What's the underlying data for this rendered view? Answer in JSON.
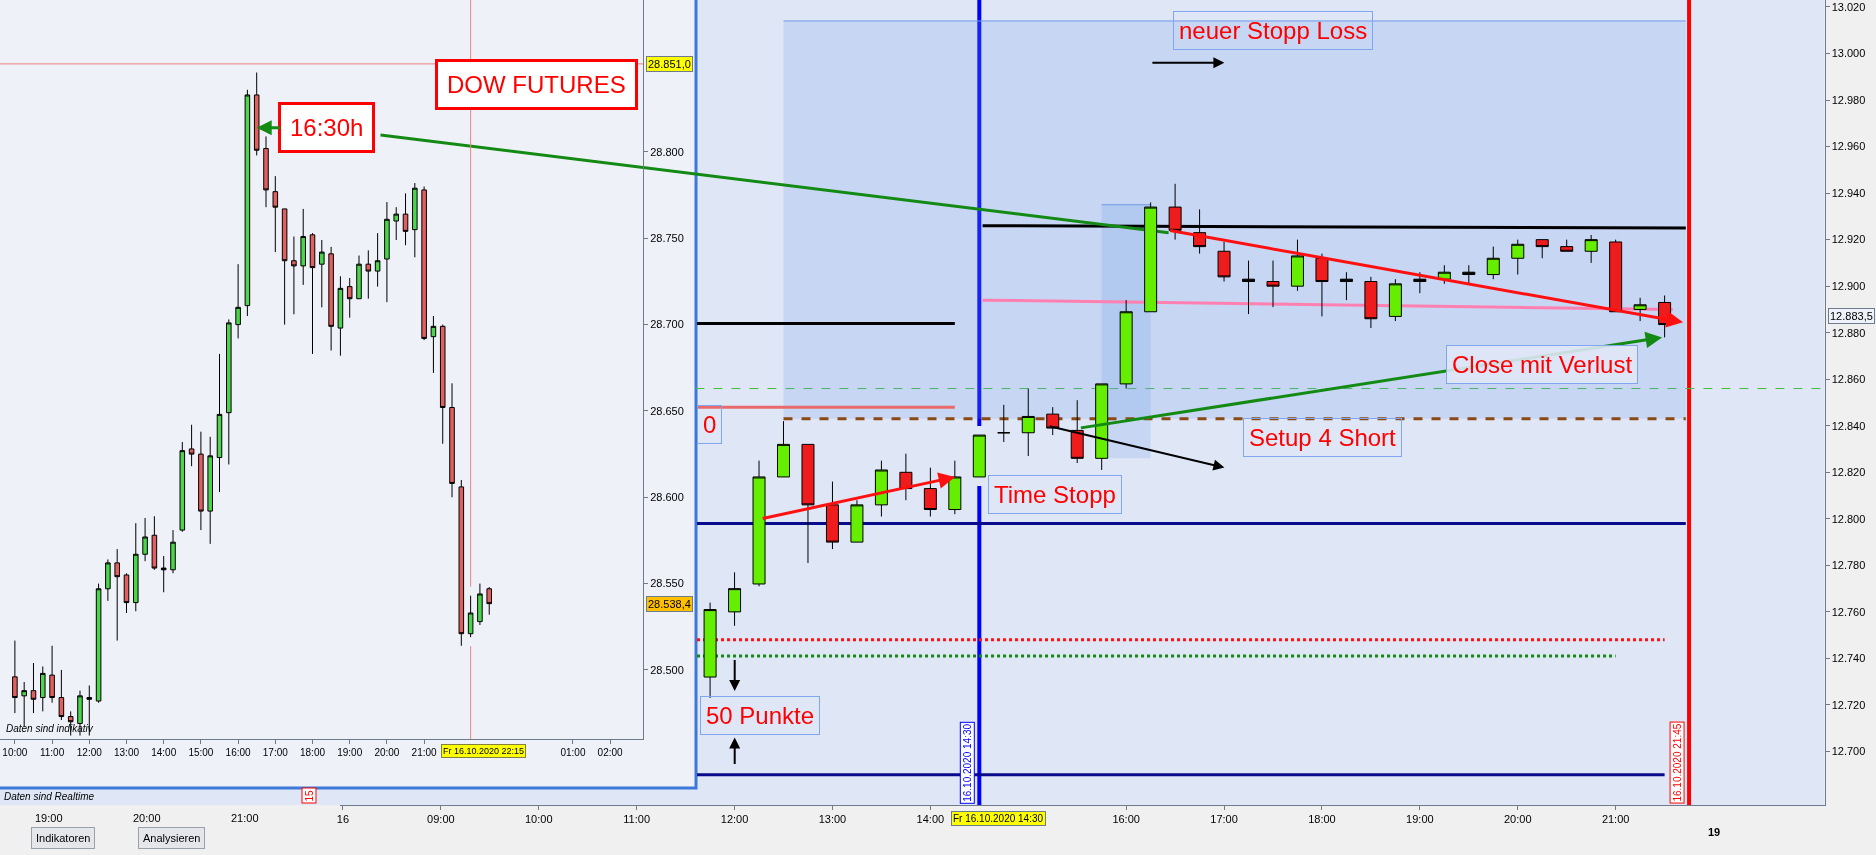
{
  "chart_data": [
    {
      "type": "candlestick",
      "title": "DOW FUTURES",
      "x": [
        "2020-10-16T10:00",
        "2020-10-16T10:15",
        "2020-10-16T10:30",
        "2020-10-16T10:45",
        "2020-10-16T11:00",
        "2020-10-16T11:15",
        "2020-10-16T11:30",
        "2020-10-16T11:45",
        "2020-10-16T12:00",
        "2020-10-16T12:15",
        "2020-10-16T12:30",
        "2020-10-16T12:45",
        "2020-10-16T13:00",
        "2020-10-16T13:15",
        "2020-10-16T13:30",
        "2020-10-16T13:45",
        "2020-10-16T14:00",
        "2020-10-16T14:15",
        "2020-10-16T14:30",
        "2020-10-16T14:45",
        "2020-10-16T15:00",
        "2020-10-16T15:15",
        "2020-10-16T15:30",
        "2020-10-16T15:45",
        "2020-10-16T16:00",
        "2020-10-16T16:15",
        "2020-10-16T16:30",
        "2020-10-16T16:45",
        "2020-10-16T17:00",
        "2020-10-16T17:15",
        "2020-10-16T17:30",
        "2020-10-16T17:45",
        "2020-10-16T18:00",
        "2020-10-16T18:15",
        "2020-10-16T18:30",
        "2020-10-16T18:45",
        "2020-10-16T19:00",
        "2020-10-16T19:15",
        "2020-10-16T19:30",
        "2020-10-16T19:45",
        "2020-10-16T20:00",
        "2020-10-16T20:15",
        "2020-10-16T20:30",
        "2020-10-16T20:45",
        "2020-10-16T21:00",
        "2020-10-16T21:15",
        "2020-10-16T21:30",
        "2020-10-16T21:45",
        "2020-10-16T22:00",
        "2020-10-16T22:15",
        "2020-10-16T22:30",
        "2020-10-16T22:45"
      ],
      "ohlc": [
        [
          28496,
          28517,
          28475,
          28484
        ],
        [
          28485,
          28493,
          28467,
          28488
        ],
        [
          28488,
          28504,
          28475,
          28483
        ],
        [
          28484,
          28502,
          28476,
          28498
        ],
        [
          28497,
          28514,
          28481,
          28484
        ],
        [
          28484,
          28500,
          28471,
          28473
        ],
        [
          28473,
          28476,
          28462,
          28470
        ],
        [
          28469,
          28488,
          28462,
          28485
        ],
        [
          28484,
          28491,
          28462,
          28483
        ],
        [
          28482,
          28550,
          28481,
          28547
        ],
        [
          28547,
          28564,
          28540,
          28562
        ],
        [
          28562,
          28570,
          28517,
          28554
        ],
        [
          28555,
          28556,
          28533,
          28539
        ],
        [
          28539,
          28585,
          28534,
          28567
        ],
        [
          28567,
          28588,
          28563,
          28577
        ],
        [
          28578,
          28589,
          28558,
          28559
        ],
        [
          28559,
          28566,
          28545,
          28558
        ],
        [
          28558,
          28581,
          28556,
          28574
        ],
        [
          28581,
          28632,
          28580,
          28627
        ],
        [
          28628,
          28642,
          28618,
          28625
        ],
        [
          28625,
          28638,
          28581,
          28592
        ],
        [
          28592,
          28635,
          28573,
          28624
        ],
        [
          28623,
          28683,
          28603,
          28648
        ],
        [
          28649,
          28703,
          28619,
          28701
        ],
        [
          28700,
          28735,
          28692,
          28710
        ],
        [
          28711,
          28836,
          28705,
          28833
        ],
        [
          28833,
          28846,
          28798,
          28801
        ],
        [
          28802,
          28809,
          28768,
          28778
        ],
        [
          28777,
          28786,
          28742,
          28768
        ],
        [
          28767,
          28767,
          28700,
          28737
        ],
        [
          28737,
          28751,
          28706,
          28734
        ],
        [
          28734,
          28767,
          28723,
          28751
        ],
        [
          28752,
          28753,
          28683,
          28733
        ],
        [
          28735,
          28749,
          28710,
          28742
        ],
        [
          28741,
          28745,
          28685,
          28699
        ],
        [
          28698,
          28728,
          28682,
          28721
        ],
        [
          28722,
          28727,
          28704,
          28715
        ],
        [
          28715,
          28740,
          28715,
          28735
        ],
        [
          28735,
          28743,
          28715,
          28731
        ],
        [
          28731,
          28753,
          28722,
          28737
        ],
        [
          28738,
          28771,
          28713,
          28761
        ],
        [
          28760,
          28768,
          28749,
          28764
        ],
        [
          28764,
          28776,
          28746,
          28754
        ],
        [
          28755,
          28782,
          28739,
          28779
        ],
        [
          28778,
          28780,
          28691,
          28692
        ],
        [
          28693,
          28705,
          28672,
          28699
        ],
        [
          28699,
          28700,
          28631,
          28652
        ],
        [
          28652,
          28666,
          28600,
          28608
        ],
        [
          28606,
          28610,
          28514,
          28521
        ],
        [
          28521,
          28543,
          28519,
          28533
        ],
        [
          28528,
          28550,
          28526,
          28544
        ],
        [
          28547,
          28548,
          28532,
          28538.4
        ]
      ],
      "colors": [
        "#e06060",
        "#4cd44c",
        "#e06060",
        "#4cd44c",
        "#e06060",
        "#e06060",
        "#e06060",
        "#4cd44c",
        "#000000",
        "#4cd44c",
        "#4cd44c",
        "#e06060",
        "#e06060",
        "#4cd44c",
        "#4cd44c",
        "#e06060",
        "#000000",
        "#4cd44c",
        "#4cd44c",
        "#e06060",
        "#e06060",
        "#4cd44c",
        "#4cd44c",
        "#4cd44c",
        "#4cd44c",
        "#4cd44c",
        "#e06060",
        "#e06060",
        "#e06060",
        "#e06060",
        "#e06060",
        "#4cd44c",
        "#e06060",
        "#4cd44c",
        "#e06060",
        "#4cd44c",
        "#e06060",
        "#4cd44c",
        "#e06060",
        "#4cd44c",
        "#4cd44c",
        "#4cd44c",
        "#e06060",
        "#4cd44c",
        "#e06060",
        "#4cd44c",
        "#e06060",
        "#e06060",
        "#e06060",
        "#4cd44c",
        "#4cd44c",
        "#e06060"
      ],
      "xlim": [
        "2020-10-16T09:36",
        "2020-10-17T02:53"
      ],
      "xticks": [
        {
          "value": "2020-10-16T10:00",
          "label": "10:00"
        },
        {
          "value": "2020-10-16T11:00",
          "label": "11:00"
        },
        {
          "value": "2020-10-16T12:00",
          "label": "12:00"
        },
        {
          "value": "2020-10-16T13:00",
          "label": "13:00"
        },
        {
          "value": "2020-10-16T14:00",
          "label": "14:00"
        },
        {
          "value": "2020-10-16T15:00",
          "label": "15:00"
        },
        {
          "value": "2020-10-16T16:00",
          "label": "16:00"
        },
        {
          "value": "2020-10-16T17:00",
          "label": "17:00"
        },
        {
          "value": "2020-10-16T18:00",
          "label": "18:00"
        },
        {
          "value": "2020-10-16T19:00",
          "label": "19:00"
        },
        {
          "value": "2020-10-16T20:00",
          "label": "20:00"
        },
        {
          "value": "2020-10-16T21:00",
          "label": "21:00"
        },
        {
          "value": "2020-10-17T01:00",
          "label": "01:00"
        },
        {
          "value": "2020-10-17T02:00",
          "label": "02:00"
        }
      ],
      "ylim": [
        28460,
        28888
      ],
      "yticks": [
        {
          "value": 28500,
          "label": "28.500"
        },
        {
          "value": 28550,
          "label": "28.550"
        },
        {
          "value": 28600,
          "label": "28.600"
        },
        {
          "value": 28650,
          "label": "28.650"
        },
        {
          "value": 28700,
          "label": "28.700"
        },
        {
          "value": 28750,
          "label": "28.750"
        },
        {
          "value": 28800,
          "label": "28.800"
        }
      ],
      "ref_lines": [
        {
          "axis": "y",
          "value": 28851,
          "label": "28.851,0",
          "color": "#f08080"
        },
        {
          "axis": "x",
          "value": "2020-10-16T22:15",
          "label": "Fr 16.10.2020 22:15",
          "color": "#f08080"
        }
      ],
      "annotations": [
        {
          "text": "16:30h",
          "x": "2020-10-16T16:30",
          "y": 28814
        },
        "28.538,4",
        "Daten sind indikativ"
      ]
    },
    {
      "type": "candlestick",
      "x": [
        "2020-10-16T11:45",
        "2020-10-16T12:00",
        "2020-10-16T12:15",
        "2020-10-16T12:30",
        "2020-10-16T12:45",
        "2020-10-16T13:00",
        "2020-10-16T13:15",
        "2020-10-16T13:30",
        "2020-10-16T13:45",
        "2020-10-16T14:00",
        "2020-10-16T14:15",
        "2020-10-16T14:30",
        "2020-10-16T14:45",
        "2020-10-16T15:00",
        "2020-10-16T15:15",
        "2020-10-16T15:30",
        "2020-10-16T15:45",
        "2020-10-16T16:00",
        "2020-10-16T16:15",
        "2020-10-16T16:30",
        "2020-10-16T16:45",
        "2020-10-16T17:00",
        "2020-10-16T17:15",
        "2020-10-16T17:30",
        "2020-10-16T17:45",
        "2020-10-16T18:00",
        "2020-10-16T18:15",
        "2020-10-16T18:30",
        "2020-10-16T18:45",
        "2020-10-16T19:00",
        "2020-10-16T19:15",
        "2020-10-16T19:30",
        "2020-10-16T19:45",
        "2020-10-16T20:00",
        "2020-10-16T20:15",
        "2020-10-16T20:30",
        "2020-10-16T20:45",
        "2020-10-16T21:00",
        "2020-10-16T21:15",
        "2020-10-16T21:30"
      ],
      "ohlc": [
        [
          12732,
          12764,
          12723,
          12761
        ],
        [
          12760,
          12777,
          12754,
          12770
        ],
        [
          12772,
          12825,
          12771,
          12818
        ],
        [
          12818,
          12842,
          12818,
          12832
        ],
        [
          12832,
          12832,
          12781,
          12806
        ],
        [
          12806,
          12816,
          12787,
          12790
        ],
        [
          12790,
          12808,
          12790,
          12806
        ],
        [
          12806,
          12825,
          12801,
          12821
        ],
        [
          12820,
          12828,
          12808,
          12813
        ],
        [
          12813,
          12822,
          12801,
          12804
        ],
        [
          12804,
          12825,
          12802,
          12818
        ],
        [
          12818,
          12836,
          12818,
          12836
        ],
        [
          12837,
          12849,
          12833,
          12837
        ],
        [
          12837,
          12856,
          12827,
          12844
        ],
        [
          12845,
          12848,
          12836,
          12839
        ],
        [
          12838,
          12851,
          12824,
          12826
        ],
        [
          12826,
          12858,
          12821,
          12858
        ],
        [
          12858,
          12894,
          12856,
          12889
        ],
        [
          12889,
          12936,
          12889,
          12934
        ],
        [
          12934,
          12944,
          12920,
          12924
        ],
        [
          12923,
          12933,
          12914,
          12917
        ],
        [
          12915,
          12919,
          12902,
          12904
        ],
        [
          12903,
          12911,
          12888,
          12902
        ],
        [
          12902,
          12911,
          12891,
          12900
        ],
        [
          12900,
          12920,
          12898,
          12913
        ],
        [
          12912,
          12914,
          12887,
          12902
        ],
        [
          12902,
          12906,
          12894,
          12903
        ],
        [
          12902,
          12904,
          12882,
          12886
        ],
        [
          12887,
          12903,
          12885,
          12901
        ],
        [
          12902,
          12906,
          12897,
          12903
        ],
        [
          12903,
          12909,
          12901,
          12906
        ],
        [
          12906,
          12909,
          12901,
          12905
        ],
        [
          12905,
          12917,
          12903,
          12912
        ],
        [
          12912,
          12920,
          12905,
          12918
        ],
        [
          12920,
          12920,
          12912,
          12917
        ],
        [
          12917,
          12920,
          12915,
          12915
        ],
        [
          12915,
          12922,
          12910,
          12920
        ],
        [
          12919,
          12920,
          12889,
          12889
        ],
        [
          12890,
          12895,
          12885,
          12892
        ],
        [
          12893,
          12896,
          12878,
          12883.5
        ]
      ],
      "colors": [
        "#66ee00",
        "#66ee00",
        "#66ee00",
        "#66ee00",
        "#ee1c1c",
        "#ee1c1c",
        "#66ee00",
        "#66ee00",
        "#ee1c1c",
        "#ee1c1c",
        "#66ee00",
        "#66ee00",
        "#000000",
        "#66ee00",
        "#ee1c1c",
        "#ee1c1c",
        "#66ee00",
        "#66ee00",
        "#66ee00",
        "#ee1c1c",
        "#ee1c1c",
        "#ee1c1c",
        "#000000",
        "#ee1c1c",
        "#66ee00",
        "#ee1c1c",
        "#000000",
        "#ee1c1c",
        "#66ee00",
        "#000000",
        "#66ee00",
        "#000000",
        "#66ee00",
        "#66ee00",
        "#ee1c1c",
        "#ee1c1c",
        "#66ee00",
        "#ee1c1c",
        "#66ee00",
        "#ee1c1c"
      ],
      "xlim": [
        "2020-10-16T07:58",
        "2020-10-16T23:08"
      ],
      "xticks": [
        {
          "value": "2020-10-16T08:00",
          "label": "16"
        },
        {
          "value": "2020-10-16T09:00",
          "label": "09:00"
        },
        {
          "value": "2020-10-16T10:00",
          "label": "10:00"
        },
        {
          "value": "2020-10-16T11:00",
          "label": "11:00"
        },
        {
          "value": "2020-10-16T12:00",
          "label": "12:00"
        },
        {
          "value": "2020-10-16T13:00",
          "label": "13:00"
        },
        {
          "value": "2020-10-16T14:00",
          "label": "14:00"
        },
        {
          "value": "2020-10-16T16:00",
          "label": "16:00"
        },
        {
          "value": "2020-10-16T17:00",
          "label": "17:00"
        },
        {
          "value": "2020-10-16T18:00",
          "label": "18:00"
        },
        {
          "value": "2020-10-16T19:00",
          "label": "19:00"
        },
        {
          "value": "2020-10-16T20:00",
          "label": "20:00"
        },
        {
          "value": "2020-10-16T21:00",
          "label": "21:00"
        }
      ],
      "ylim": [
        12677,
        13023
      ],
      "yticks": [
        {
          "value": 12700,
          "label": "12.700"
        },
        {
          "value": 12720,
          "label": "12.720"
        },
        {
          "value": 12740,
          "label": "12.740"
        },
        {
          "value": 12760,
          "label": "12.760"
        },
        {
          "value": 12780,
          "label": "12.780"
        },
        {
          "value": 12800,
          "label": "12.800"
        },
        {
          "value": 12820,
          "label": "12.820"
        },
        {
          "value": 12840,
          "label": "12.840"
        },
        {
          "value": 12860,
          "label": "12.860"
        },
        {
          "value": 12880,
          "label": "12.880"
        },
        {
          "value": 12900,
          "label": "12.900"
        },
        {
          "value": 12920,
          "label": "12.920"
        },
        {
          "value": 12940,
          "label": "12.940"
        },
        {
          "value": 12960,
          "label": "12.960"
        },
        {
          "value": 12980,
          "label": "12.980"
        },
        {
          "value": 13000,
          "label": "13.000"
        },
        {
          "value": 13020,
          "label": "13.020"
        }
      ],
      "series": [
        {
          "type": "line",
          "x": [
            "2020-10-16T12:30",
            "2020-10-16T21:43"
          ],
          "values": [
            13014,
            13014
          ],
          "lower": [
            12843,
            12843
          ],
          "upper": [
            13014,
            13014
          ],
          "color": "#6f9ae8"
        },
        {
          "type": "line",
          "x": [
            "2020-10-16T15:45",
            "2020-10-16T16:15"
          ],
          "values": [
            12935,
            12935
          ],
          "lower": [
            12826,
            12826
          ],
          "upper": [
            12935,
            12935
          ],
          "color": "#6f9ae8"
        },
        {
          "type": "line",
          "x": [
            "2020-10-16T11:37",
            "2020-10-16T14:15"
          ],
          "values": [
            12884,
            12884
          ],
          "color": "#000000"
        },
        {
          "type": "line",
          "x": [
            "2020-10-16T14:32",
            "2020-10-16T21:43"
          ],
          "values": [
            12926,
            12925
          ],
          "color": "#000000"
        },
        {
          "type": "line",
          "x": [
            "2020-10-16T14:32",
            "2020-10-16T21:35"
          ],
          "values": [
            12894,
            12890
          ],
          "color": "#ff80b0"
        },
        {
          "type": "line",
          "x": [
            "2020-10-16T11:37",
            "2020-10-16T21:43"
          ],
          "values": [
            12798,
            12798
          ],
          "color": "#0a0a8c"
        },
        {
          "type": "line",
          "x": [
            "2020-10-16T11:37",
            "2020-10-16T21:30"
          ],
          "values": [
            12690,
            12690
          ],
          "color": "#0a0a8c"
        },
        {
          "type": "line",
          "x": [
            "2020-10-16T11:37",
            "2020-10-16T21:30"
          ],
          "values": [
            12748,
            12748
          ],
          "color": "#ff1010",
          "line_style": "dotted"
        },
        {
          "type": "line",
          "x": [
            "2020-10-16T11:37",
            "2020-10-16T21:00"
          ],
          "values": [
            12741,
            12741
          ],
          "color": "#138a13",
          "line_style": "dotted"
        },
        {
          "type": "line",
          "x": [
            "2020-10-16T12:30",
            "2020-10-16T21:43"
          ],
          "values": [
            12843,
            12843
          ],
          "color": "#8b4a14",
          "line_style": "dashed"
        },
        {
          "type": "line",
          "x": [
            "2020-10-16T11:37",
            "2020-10-16T14:15"
          ],
          "values": [
            12848,
            12848
          ],
          "color": "#e86a6a"
        },
        {
          "type": "line",
          "x": [
            "2020-10-16T08:23",
            "2020-10-16T16:26"
          ],
          "values": [
            12965,
            12923
          ],
          "color": "#138a13"
        }
      ],
      "ref_lines": [
        {
          "axis": "x",
          "value": "2020-10-16T14:30",
          "label": "16.10.2020 14:30",
          "color": "#0000ff"
        },
        {
          "axis": "x",
          "value": "2020-10-16T21:45",
          "label": "16.10.2020 21:45",
          "color": "#ff0000"
        },
        {
          "axis": "y",
          "value": 12856,
          "color": "#44bb44",
          "line_style": "dashed"
        }
      ],
      "annotations": [
        "neuer Stopp Loss",
        "Time Stopp",
        "Setup 4 Short",
        "Close mit Verlust",
        "50 Punkte",
        "0",
        "12.883,5",
        "Fr 16.10.2020 14:30",
        "19:00",
        "20:00",
        "21:00",
        "15",
        "19",
        "Daten sind Realtime",
        "Indikatoren",
        "Analysieren"
      ]
    }
  ]
}
